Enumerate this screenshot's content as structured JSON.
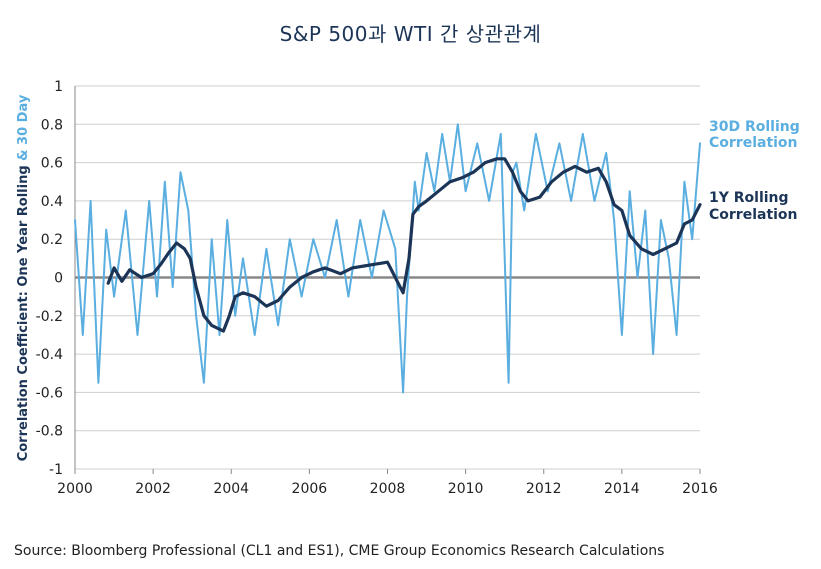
{
  "chart_data": {
    "type": "line",
    "title": "S&P 500과 WTI 간 상관관계",
    "ylabel_part1": "Correlation Coefficient: One Year Rolling ",
    "ylabel_part2": "& 30 Day",
    "source": "Source: Bloomberg Professional (CL1 and ES1), CME Group Economics Research Calculations",
    "xlim": [
      2000,
      2016
    ],
    "ylim": [
      -1,
      1
    ],
    "x_ticks": [
      2000,
      2002,
      2004,
      2006,
      2008,
      2010,
      2012,
      2014,
      2016
    ],
    "x_tick_labels": [
      "2000",
      "2002",
      "2004",
      "2006",
      "2008",
      "2010",
      "2012",
      "2014",
      "2016"
    ],
    "y_ticks": [
      1,
      0.8,
      0.6,
      0.4,
      0.2,
      0,
      -0.2,
      -0.4,
      -0.6,
      -0.8,
      -1
    ],
    "y_tick_labels": [
      "1",
      "0.8",
      "0.6",
      "0.4",
      "0.2",
      "0",
      "-0.2",
      "-0.4",
      "-0.6",
      "-0.8",
      "-1"
    ],
    "grid": "horizontal",
    "legend": "right, inline labels",
    "series": [
      {
        "name": "30D Rolling Correlation",
        "label_lines": [
          "30D Rolling",
          "Correlation"
        ],
        "color": "#5aaee0",
        "x": [
          2000.0,
          2000.2,
          2000.4,
          2000.6,
          2000.8,
          2001.0,
          2001.3,
          2001.6,
          2001.9,
          2002.1,
          2002.3,
          2002.5,
          2002.7,
          2002.9,
          2003.1,
          2003.3,
          2003.5,
          2003.7,
          2003.9,
          2004.1,
          2004.3,
          2004.6,
          2004.9,
          2005.2,
          2005.5,
          2005.8,
          2006.1,
          2006.4,
          2006.7,
          2007.0,
          2007.3,
          2007.6,
          2007.9,
          2008.2,
          2008.4,
          2008.5,
          2008.6,
          2008.7,
          2008.8,
          2009.0,
          2009.2,
          2009.4,
          2009.6,
          2009.8,
          2010.0,
          2010.3,
          2010.6,
          2010.9,
          2011.1,
          2011.2,
          2011.3,
          2011.5,
          2011.8,
          2012.1,
          2012.4,
          2012.7,
          2013.0,
          2013.3,
          2013.6,
          2013.8,
          2014.0,
          2014.2,
          2014.4,
          2014.6,
          2014.8,
          2015.0,
          2015.2,
          2015.4,
          2015.6,
          2015.8,
          2016.0
        ],
        "y": [
          0.3,
          -0.3,
          0.4,
          -0.55,
          0.25,
          -0.1,
          0.35,
          -0.3,
          0.4,
          -0.1,
          0.5,
          -0.05,
          0.55,
          0.35,
          -0.2,
          -0.55,
          0.2,
          -0.3,
          0.3,
          -0.2,
          0.1,
          -0.3,
          0.15,
          -0.25,
          0.2,
          -0.1,
          0.2,
          0.0,
          0.3,
          -0.1,
          0.3,
          0.0,
          0.35,
          0.15,
          -0.6,
          -0.1,
          0.2,
          0.5,
          0.35,
          0.65,
          0.45,
          0.75,
          0.5,
          0.8,
          0.45,
          0.7,
          0.4,
          0.75,
          -0.55,
          0.55,
          0.6,
          0.35,
          0.75,
          0.45,
          0.7,
          0.4,
          0.75,
          0.4,
          0.65,
          0.3,
          -0.3,
          0.45,
          0.0,
          0.35,
          -0.4,
          0.3,
          0.1,
          -0.3,
          0.5,
          0.2,
          0.7
        ]
      },
      {
        "name": "1Y Rolling Correlation",
        "label_lines": [
          "1Y Rolling",
          "Correlation"
        ],
        "color": "#1c3557",
        "x": [
          2000.85,
          2001.0,
          2001.2,
          2001.4,
          2001.7,
          2002.0,
          2002.2,
          2002.4,
          2002.6,
          2002.8,
          2002.95,
          2003.1,
          2003.3,
          2003.5,
          2003.8,
          2003.95,
          2004.1,
          2004.3,
          2004.6,
          2004.9,
          2005.2,
          2005.5,
          2005.8,
          2006.1,
          2006.4,
          2006.8,
          2007.1,
          2007.4,
          2007.7,
          2008.0,
          2008.2,
          2008.4,
          2008.55,
          2008.65,
          2008.8,
          2009.0,
          2009.3,
          2009.6,
          2009.9,
          2010.2,
          2010.5,
          2010.8,
          2011.0,
          2011.2,
          2011.4,
          2011.6,
          2011.9,
          2012.2,
          2012.5,
          2012.8,
          2013.1,
          2013.4,
          2013.6,
          2013.8,
          2014.0,
          2014.2,
          2014.5,
          2014.8,
          2015.1,
          2015.4,
          2015.6,
          2015.8,
          2016.0
        ],
        "y": [
          -0.03,
          0.05,
          -0.02,
          0.04,
          0.0,
          0.02,
          0.07,
          0.13,
          0.18,
          0.15,
          0.1,
          -0.05,
          -0.2,
          -0.25,
          -0.28,
          -0.2,
          -0.1,
          -0.08,
          -0.1,
          -0.15,
          -0.12,
          -0.05,
          0.0,
          0.03,
          0.05,
          0.02,
          0.05,
          0.06,
          0.07,
          0.08,
          0.0,
          -0.08,
          0.1,
          0.33,
          0.37,
          0.4,
          0.45,
          0.5,
          0.52,
          0.55,
          0.6,
          0.62,
          0.62,
          0.55,
          0.45,
          0.4,
          0.42,
          0.5,
          0.55,
          0.58,
          0.55,
          0.57,
          0.5,
          0.38,
          0.35,
          0.22,
          0.15,
          0.12,
          0.15,
          0.18,
          0.28,
          0.3,
          0.38
        ]
      }
    ]
  }
}
